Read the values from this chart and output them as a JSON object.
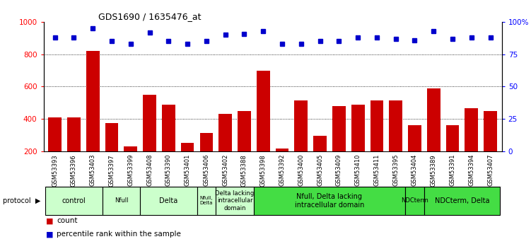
{
  "title": "GDS1690 / 1635476_at",
  "samples": [
    "GSM53393",
    "GSM53396",
    "GSM53403",
    "GSM53397",
    "GSM53399",
    "GSM53408",
    "GSM53390",
    "GSM53401",
    "GSM53406",
    "GSM53402",
    "GSM53388",
    "GSM53398",
    "GSM53392",
    "GSM53400",
    "GSM53405",
    "GSM53409",
    "GSM53410",
    "GSM53411",
    "GSM53395",
    "GSM53404",
    "GSM53389",
    "GSM53391",
    "GSM53394",
    "GSM53407"
  ],
  "counts": [
    410,
    410,
    820,
    375,
    230,
    550,
    490,
    250,
    315,
    430,
    450,
    700,
    215,
    515,
    295,
    480,
    490,
    515,
    515,
    360,
    590,
    360,
    465,
    450
  ],
  "percentiles": [
    88,
    88,
    95,
    85,
    83,
    92,
    85,
    83,
    85,
    90,
    91,
    93,
    83,
    83,
    85,
    85,
    88,
    88,
    87,
    86,
    93,
    87,
    88,
    88
  ],
  "bar_color": "#cc0000",
  "dot_color": "#0000cc",
  "ylim_left": [
    200,
    1000
  ],
  "yticks_left": [
    200,
    400,
    600,
    800,
    1000
  ],
  "ytick_labels_right": [
    "0",
    "25",
    "50",
    "75",
    "100%"
  ],
  "yticks_right": [
    0,
    25,
    50,
    75,
    100
  ],
  "grid_values": [
    400,
    600,
    800
  ],
  "group_defs": [
    {
      "label": "control",
      "indices": [
        0,
        1,
        2
      ],
      "color": "#ccffcc"
    },
    {
      "label": "Nfull",
      "indices": [
        3,
        4
      ],
      "color": "#ccffcc"
    },
    {
      "label": "Delta",
      "indices": [
        5,
        6,
        7
      ],
      "color": "#ccffcc"
    },
    {
      "label": "Nfull,\nDelta",
      "indices": [
        8
      ],
      "color": "#ccffcc"
    },
    {
      "label": "Delta lacking\nintracellular\ndomain",
      "indices": [
        9,
        10
      ],
      "color": "#ccffcc"
    },
    {
      "label": "Nfull, Delta lacking\nintracellular domain",
      "indices": [
        11,
        12,
        13,
        14,
        15,
        16,
        17,
        18
      ],
      "color": "#44dd44"
    },
    {
      "label": "NDCterm",
      "indices": [
        19
      ],
      "color": "#44dd44"
    },
    {
      "label": "NDCterm, Delta",
      "indices": [
        20,
        21,
        22,
        23
      ],
      "color": "#44dd44"
    }
  ],
  "legend_count_label": "count",
  "legend_pct_label": "percentile rank within the sample",
  "background_color": "#ffffff",
  "tick_area_bg": "#c8c8c8"
}
